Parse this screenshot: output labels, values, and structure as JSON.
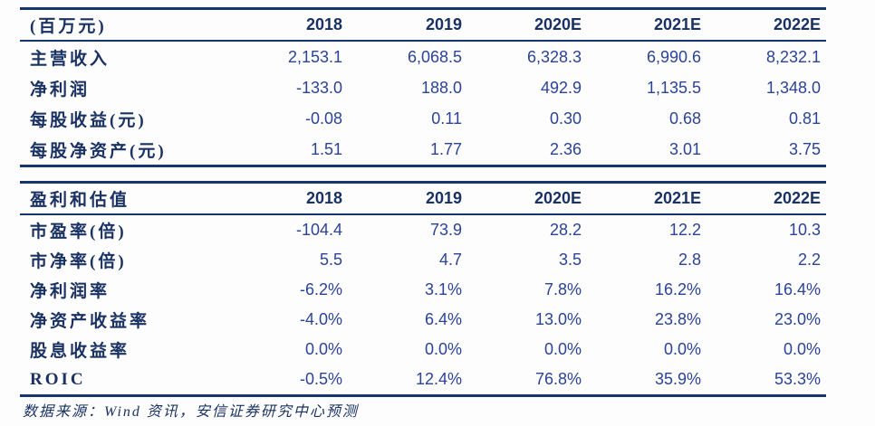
{
  "colors": {
    "label_text": "#1a3163",
    "number_text": "#2b4399",
    "border": "#16356d",
    "background": "#fdfdfe"
  },
  "table_financials": {
    "header": [
      "(百万元)",
      "2018",
      "2019",
      "2020E",
      "2021E",
      "2022E"
    ],
    "rows": [
      {
        "label": "主营收入",
        "values": [
          "2,153.1",
          "6,068.5",
          "6,328.3",
          "6,990.6",
          "8,232.1"
        ]
      },
      {
        "label": "净利润",
        "values": [
          "-133.0",
          "188.0",
          "492.9",
          "1,135.5",
          "1,348.0"
        ]
      },
      {
        "label": "每股收益(元)",
        "values": [
          "-0.08",
          "0.11",
          "0.30",
          "0.68",
          "0.81"
        ]
      },
      {
        "label": "每股净资产(元)",
        "values": [
          "1.51",
          "1.77",
          "2.36",
          "3.01",
          "3.75"
        ]
      }
    ]
  },
  "table_valuation": {
    "header": [
      "盈利和估值",
      "2018",
      "2019",
      "2020E",
      "2021E",
      "2022E"
    ],
    "rows": [
      {
        "label": "市盈率(倍)",
        "values": [
          "-104.4",
          "73.9",
          "28.2",
          "12.2",
          "10.3"
        ]
      },
      {
        "label": "市净率(倍)",
        "values": [
          "5.5",
          "4.7",
          "3.5",
          "2.8",
          "2.2"
        ]
      },
      {
        "label": "净利润率",
        "values": [
          "-6.2%",
          "3.1%",
          "7.8%",
          "16.2%",
          "16.4%"
        ]
      },
      {
        "label": "净资产收益率",
        "values": [
          "-4.0%",
          "6.4%",
          "13.0%",
          "23.8%",
          "23.0%"
        ]
      },
      {
        "label": "股息收益率",
        "values": [
          "0.0%",
          "0.0%",
          "0.0%",
          "0.0%",
          "0.0%"
        ]
      },
      {
        "label": "ROIC",
        "values": [
          "-0.5%",
          "12.4%",
          "76.8%",
          "35.9%",
          "53.3%"
        ]
      }
    ]
  },
  "footer": {
    "source_note": "数据来源：Wind 资讯，安信证券研究中心预测"
  }
}
